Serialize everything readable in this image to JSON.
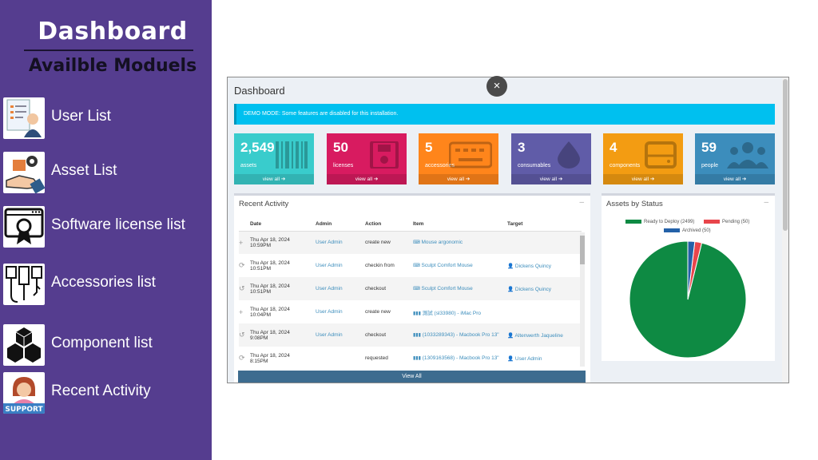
{
  "left_panel": {
    "title": "Dashboard",
    "subtitle": "Availble Moduels",
    "modules": [
      {
        "label": "User List",
        "icon": "user-list-icon"
      },
      {
        "label": "Asset List",
        "icon": "asset-list-icon"
      },
      {
        "label": "Software license list",
        "icon": "license-icon"
      },
      {
        "label": "Accessories list",
        "icon": "accessories-icon"
      },
      {
        "label": "Component list",
        "icon": "component-icon"
      },
      {
        "label": "Recent Activity",
        "icon": "support-icon",
        "icon_text": "SUPPORT"
      }
    ]
  },
  "dashboard": {
    "title": "Dashboard",
    "close_glyph": "×",
    "banner": "DEMO MODE: Some features are disabled for this installation.",
    "tiles": [
      {
        "count": "2,549",
        "label": "assets",
        "link": "view all",
        "color": "#39cccc",
        "icon": "barcode-icon"
      },
      {
        "count": "50",
        "label": "licenses",
        "link": "view all",
        "color": "#d81b60",
        "icon": "floppy-disk-icon"
      },
      {
        "count": "5",
        "label": "accessories",
        "link": "view all",
        "color": "#ff851b",
        "icon": "keyboard-icon"
      },
      {
        "count": "3",
        "label": "consumables",
        "link": "view all",
        "color": "#605ca8",
        "icon": "droplet-icon"
      },
      {
        "count": "4",
        "label": "components",
        "link": "view all",
        "color": "#f39c12",
        "icon": "hdd-icon"
      },
      {
        "count": "59",
        "label": "people",
        "link": "view all",
        "color": "#3c8dbc",
        "icon": "users-icon"
      }
    ],
    "recent_activity": {
      "title": "Recent Activity",
      "minimize": "–",
      "columns": [
        "Date",
        "Admin",
        "Action",
        "Item",
        "Target"
      ],
      "rows": [
        {
          "icon": "plus-icon",
          "glyph": "+",
          "date1": "Thu Apr 18, 2024",
          "date2": "10:59PM",
          "admin": "User Admin",
          "action": "create new",
          "item": "Mouse argonomic",
          "item_icon": "keyboard-icon",
          "target": ""
        },
        {
          "icon": "checkin-icon",
          "glyph": "⟳",
          "date1": "Thu Apr 18, 2024",
          "date2": "10:51PM",
          "admin": "User Admin",
          "action": "checkin from",
          "item": "Sculpt Comfort Mouse",
          "item_icon": "keyboard-icon",
          "target": "Dickens Quincy"
        },
        {
          "icon": "checkout-icon",
          "glyph": "↺",
          "date1": "Thu Apr 18, 2024",
          "date2": "10:51PM",
          "admin": "User Admin",
          "action": "checkout",
          "item": "Sculpt Comfort Mouse",
          "item_icon": "keyboard-icon",
          "target": "Dickens Quincy"
        },
        {
          "icon": "plus-icon",
          "glyph": "+",
          "date1": "Thu Apr 18, 2024",
          "date2": "10:04PM",
          "admin": "User Admin",
          "action": "create new",
          "item": "測試 (sl33980) - iMac Pro",
          "item_icon": "barcode-icon",
          "target": ""
        },
        {
          "icon": "checkout-icon",
          "glyph": "↺",
          "date1": "Thu Apr 18, 2024",
          "date2": "9:08PM",
          "admin": "User Admin",
          "action": "checkout",
          "item": "(1033289343) - Macbook Pro 13\"",
          "item_icon": "barcode-icon",
          "target": "Altenwerth Jaqueline"
        },
        {
          "icon": "requested-icon",
          "glyph": "⟳",
          "date1": "Thu Apr 18, 2024",
          "date2": "8:15PM",
          "admin": "",
          "action": "requested",
          "item": "(1309163568) - Macbook Pro 13\"",
          "item_icon": "barcode-icon",
          "target": "User Admin"
        }
      ],
      "view_all": "View All"
    },
    "assets_by_status": {
      "title": "Assets by Status",
      "minimize": "–"
    }
  },
  "chart_data": {
    "type": "pie",
    "title": "",
    "legend_position": "top",
    "series": [
      {
        "name": "Ready to Deploy (2499)",
        "value": 2499,
        "color": "#0e8a43"
      },
      {
        "name": "Pending (50)",
        "value": 50,
        "color": "#e8454b"
      },
      {
        "name": "Archived (50)",
        "value": 50,
        "color": "#2461a8"
      }
    ]
  }
}
